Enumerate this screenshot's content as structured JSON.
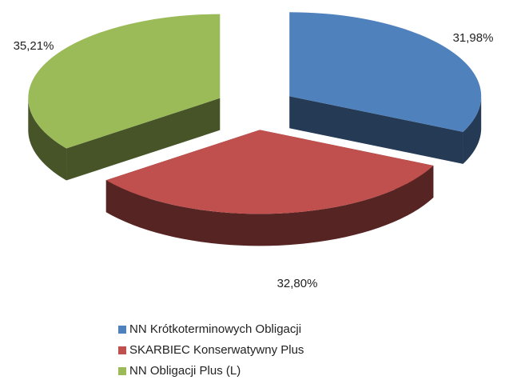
{
  "chart_data": {
    "type": "pie",
    "series": [
      {
        "name": "NN Krótkoterminowych Obligacji",
        "color": "#4f81bd",
        "values": [
          31.98
        ],
        "value_labels": [
          "31,98%"
        ]
      },
      {
        "name": "SKARBIEC Konserwatywny Plus",
        "color": "#c0504d",
        "values": [
          32.8
        ],
        "value_labels": [
          "32,80%"
        ]
      },
      {
        "name": "NN Obligacji Plus (L)",
        "color": "#9bbb59",
        "values": [
          35.21
        ],
        "value_labels": [
          "35,21%"
        ]
      }
    ],
    "legend": "bottom"
  }
}
